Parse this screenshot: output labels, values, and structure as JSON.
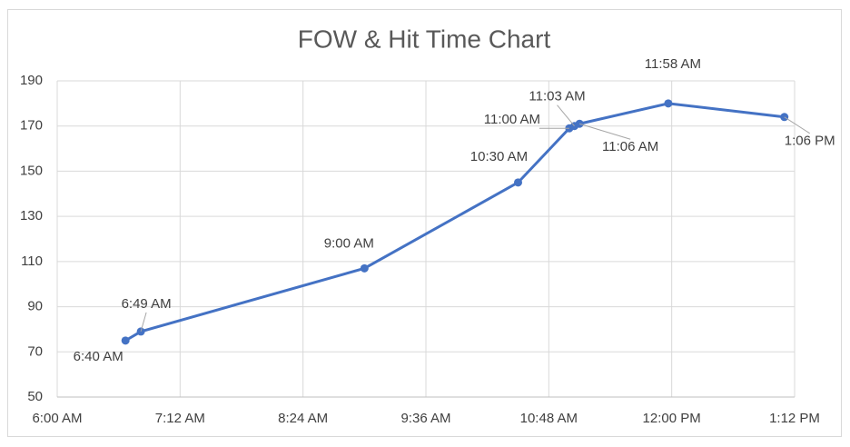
{
  "chart_data": {
    "type": "line",
    "title": "FOW & Hit Time Chart",
    "x": [
      400,
      409,
      540,
      630,
      660,
      663,
      666,
      718,
      786
    ],
    "series": [
      {
        "color": "#4472c4",
        "values": [
          75,
          79,
          107,
          145,
          169,
          170,
          171,
          180,
          174
        ],
        "point_labels": [
          "6:40 AM",
          "6:49 AM",
          "9:00 AM",
          "10:30 AM",
          "11:00 AM",
          "11:03 AM",
          "11:06 AM",
          "11:58 AM",
          "1:06 PM"
        ]
      }
    ],
    "xlim": [
      360,
      792
    ],
    "xticks": [
      {
        "value": 360,
        "label": "6:00 AM"
      },
      {
        "value": 432,
        "label": "7:12 AM"
      },
      {
        "value": 504,
        "label": "8:24 AM"
      },
      {
        "value": 576,
        "label": "9:36 AM"
      },
      {
        "value": 648,
        "label": "10:48 AM"
      },
      {
        "value": 720,
        "label": "12:00 PM"
      },
      {
        "value": 792,
        "label": "1:12 PM"
      }
    ],
    "ylim": [
      50,
      190
    ],
    "yticks": [
      50,
      70,
      90,
      110,
      130,
      150,
      170,
      190
    ],
    "grid": true
  }
}
